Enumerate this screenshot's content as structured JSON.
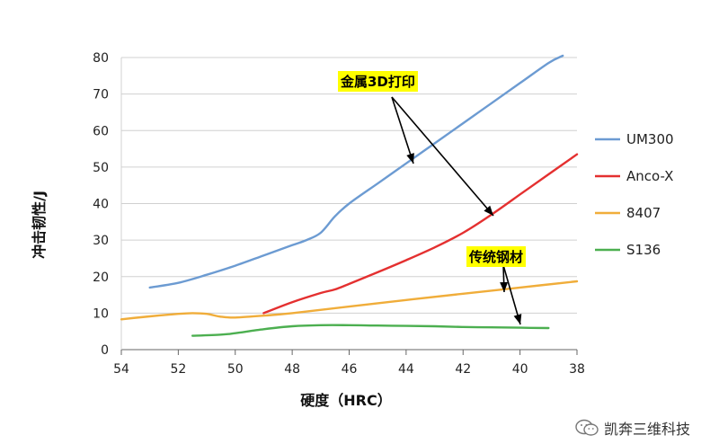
{
  "chart_data": {
    "type": "line",
    "xlabel": "硬度（HRC）",
    "ylabel": "冲击韧性/J",
    "xlim": [
      54,
      38
    ],
    "ylim": [
      0,
      80
    ],
    "x_ticks": [
      "54",
      "52",
      "50",
      "48",
      "46",
      "44",
      "42",
      "40",
      "38"
    ],
    "y_ticks": [
      "0",
      "10",
      "20",
      "30",
      "40",
      "50",
      "60",
      "70",
      "80"
    ],
    "grid": "horizontal",
    "legend_position": "right",
    "series": [
      {
        "name": "UM300",
        "color": "#6c9bd2",
        "x": [
          53.0,
          52.0,
          51.0,
          50.0,
          49.0,
          48.0,
          47.5,
          47.0,
          46.5,
          46.0,
          45.0,
          44.0,
          43.0,
          42.0,
          41.0,
          40.0,
          39.0,
          38.5
        ],
        "y": [
          17.0,
          18.3,
          20.5,
          23.0,
          25.8,
          28.6,
          30.0,
          32.0,
          36.5,
          40.0,
          45.5,
          51.0,
          56.5,
          62.0,
          67.5,
          73.0,
          78.5,
          80.5
        ]
      },
      {
        "name": "Anco-X",
        "color": "#e43030",
        "x": [
          49.0,
          48.0,
          47.0,
          46.5,
          46.0,
          45.0,
          44.0,
          43.0,
          42.0,
          41.0,
          40.0,
          39.0,
          38.0
        ],
        "y": [
          10.0,
          13.0,
          15.5,
          16.5,
          18.0,
          21.2,
          24.5,
          28.0,
          32.0,
          37.0,
          42.5,
          48.0,
          53.5
        ]
      },
      {
        "name": "8407",
        "color": "#f0ad3a",
        "x": [
          54.0,
          53.0,
          52.0,
          51.5,
          51.0,
          50.5,
          50.0,
          49.0,
          48.0,
          46.0,
          44.0,
          42.0,
          40.0,
          38.0
        ],
        "y": [
          8.3,
          9.1,
          9.8,
          10.0,
          9.8,
          9.0,
          8.8,
          9.3,
          10.0,
          11.8,
          13.6,
          15.3,
          17.0,
          18.7
        ]
      },
      {
        "name": "S136",
        "color": "#4caf50",
        "x": [
          51.5,
          50.5,
          50.0,
          49.0,
          48.0,
          47.0,
          46.0,
          45.0,
          44.0,
          43.0,
          42.0,
          41.0,
          40.0,
          39.0
        ],
        "y": [
          3.8,
          4.1,
          4.5,
          5.6,
          6.4,
          6.7,
          6.7,
          6.6,
          6.5,
          6.4,
          6.2,
          6.1,
          6.0,
          5.9
        ]
      }
    ],
    "annotations": [
      {
        "text": "金属3D打印"
      },
      {
        "text": "传统钢材"
      }
    ]
  },
  "watermark": {
    "text": "凯奔三维科技",
    "icon": "wechat-icon"
  }
}
